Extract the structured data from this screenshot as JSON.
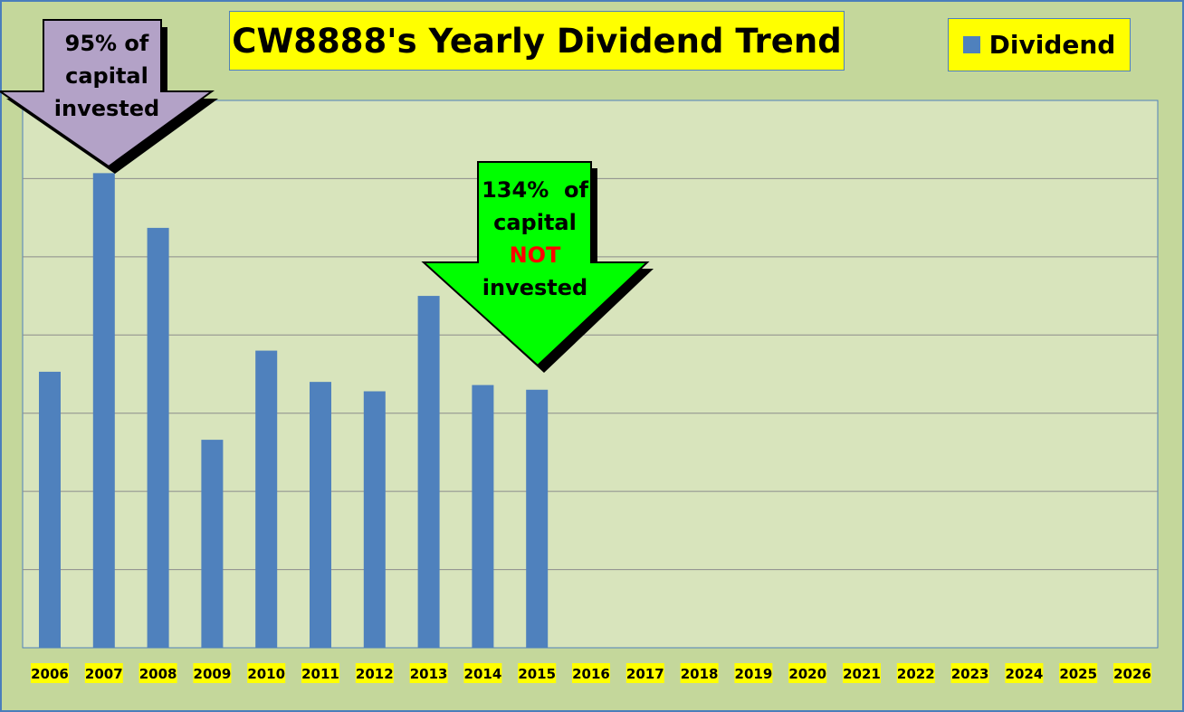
{
  "chart_data": {
    "type": "bar",
    "title": "CW8888's Yearly Dividend Trend",
    "categories": [
      "2006",
      "2007",
      "2008",
      "2009",
      "2010",
      "2011",
      "2012",
      "2013",
      "2014",
      "2015",
      "2016",
      "2017",
      "2018",
      "2019",
      "2020",
      "2021",
      "2022",
      "2023",
      "2024",
      "2025",
      "2026"
    ],
    "series": [
      {
        "name": "Dividend",
        "color": "#4f81bd",
        "values": [
          3.53,
          6.07,
          5.37,
          2.66,
          3.8,
          3.4,
          3.28,
          4.5,
          3.36,
          3.3,
          null,
          null,
          null,
          null,
          null,
          null,
          null,
          null,
          null,
          null,
          null
        ]
      }
    ],
    "ylim": [
      0,
      7
    ],
    "grid": true,
    "legend_position": "top-right",
    "y_tick_labels_shown": false,
    "colors": {
      "background": "#c4d79b",
      "plot_area": "#d8e4bc",
      "label_highlight": "#ffff00",
      "gridline": "#8c8c8c"
    }
  },
  "annotations": {
    "left_arrow": {
      "lines": [
        "95% of",
        "capital",
        "invested"
      ],
      "fill": "#b3a2c7",
      "points_to": "2007"
    },
    "right_arrow": {
      "lines": [
        "134%  of",
        "capital",
        "NOT",
        "invested"
      ],
      "highlight_line": 2,
      "highlight_color": "#ff0000",
      "fill": "#00ff00",
      "points_to": "2015"
    }
  }
}
